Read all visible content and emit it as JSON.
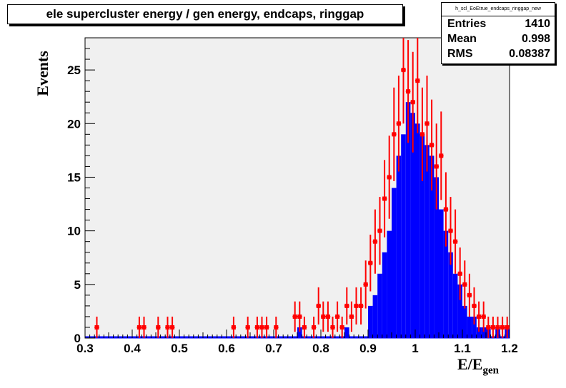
{
  "title": "ele supercluster energy / gen energy, endcaps, ringgap",
  "stats": {
    "name": "h_scl_EoEtrue_endcaps_ringgap_new",
    "rows": [
      {
        "label": "Entries",
        "value": "1410"
      },
      {
        "label": "Mean",
        "value": "0.998"
      },
      {
        "label": "RMS",
        "value": "0.08387"
      }
    ]
  },
  "axes": {
    "ylabel": "Events",
    "xlabel_main": "E/E",
    "xlabel_sub": "gen"
  },
  "chart_data": {
    "type": "histogram",
    "xlim": [
      0.3,
      1.2
    ],
    "ylim": [
      0,
      28
    ],
    "x_ticks": [
      "0.3",
      "0.4",
      "0.5",
      "0.6",
      "0.7",
      "0.8",
      "0.9",
      "1",
      "1.1",
      "1.2"
    ],
    "y_ticks": [
      "0",
      "5",
      "10",
      "15",
      "20",
      "25"
    ],
    "series": [
      {
        "color": "#0000ff",
        "style": "filled-histogram",
        "x": [
          0.755,
          0.855,
          0.905,
          0.915,
          0.925,
          0.935,
          0.945,
          0.955,
          0.965,
          0.975,
          0.985,
          0.995,
          1.005,
          1.015,
          1.025,
          1.035,
          1.045,
          1.055,
          1.065,
          1.075,
          1.085,
          1.095,
          1.105,
          1.115,
          1.125,
          1.135,
          1.145,
          1.155,
          1.175,
          1.195
        ],
        "y": [
          1,
          1,
          3,
          4,
          6,
          8,
          10,
          14,
          17,
          19,
          22,
          21,
          20,
          19,
          18,
          17,
          15,
          12,
          10,
          8,
          6,
          5,
          3,
          2,
          2,
          1,
          1,
          1,
          1,
          1
        ]
      },
      {
        "color": "#ff0000",
        "style": "points-with-errors",
        "x": [
          0.325,
          0.415,
          0.425,
          0.455,
          0.475,
          0.485,
          0.615,
          0.645,
          0.665,
          0.675,
          0.685,
          0.705,
          0.745,
          0.755,
          0.765,
          0.785,
          0.795,
          0.805,
          0.815,
          0.825,
          0.835,
          0.845,
          0.855,
          0.865,
          0.875,
          0.885,
          0.895,
          0.905,
          0.915,
          0.925,
          0.935,
          0.945,
          0.955,
          0.965,
          0.975,
          0.985,
          0.995,
          1.005,
          1.015,
          1.025,
          1.035,
          1.045,
          1.055,
          1.065,
          1.075,
          1.085,
          1.095,
          1.105,
          1.115,
          1.125,
          1.135,
          1.145,
          1.155,
          1.165,
          1.175,
          1.185,
          1.195
        ],
        "y": [
          1,
          1,
          1,
          1,
          1,
          1,
          1,
          1,
          1,
          1,
          1,
          1,
          2,
          2,
          1,
          1,
          3,
          2,
          2,
          1,
          2,
          1,
          3,
          2,
          3,
          3,
          5,
          7,
          9,
          10,
          13,
          15,
          19,
          20,
          25,
          23,
          22,
          24,
          19,
          20,
          18,
          16,
          17,
          12,
          10,
          9,
          6,
          5,
          4,
          3,
          2,
          2,
          1,
          1,
          1,
          1,
          1
        ]
      }
    ]
  }
}
